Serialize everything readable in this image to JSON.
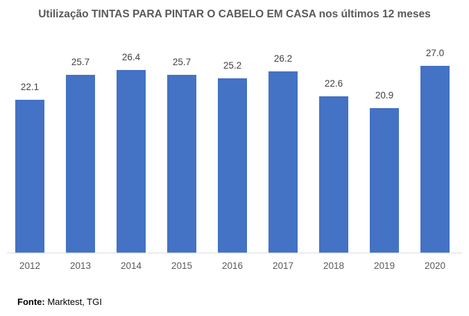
{
  "chart_data": {
    "type": "bar",
    "title": "Utilização TINTAS PARA PINTAR O CABELO EM CASA nos últimos 12 meses",
    "categories": [
      "2012",
      "2013",
      "2014",
      "2015",
      "2016",
      "2017",
      "2018",
      "2019",
      "2020"
    ],
    "values": [
      22.1,
      25.7,
      26.4,
      25.7,
      25.2,
      26.2,
      22.6,
      20.9,
      27.0
    ],
    "data_labels": [
      "22.1",
      "25.7",
      "26.4",
      "25.7",
      "25.2",
      "26.2",
      "22.6",
      "20.9",
      "27.0"
    ],
    "xlabel": "",
    "ylabel": "",
    "ylim": [
      0,
      28
    ],
    "grid": false,
    "legend": "none",
    "bar_color": "#4472C4"
  },
  "source": {
    "label": "Fonte:",
    "text": "Marktest, TGI"
  }
}
